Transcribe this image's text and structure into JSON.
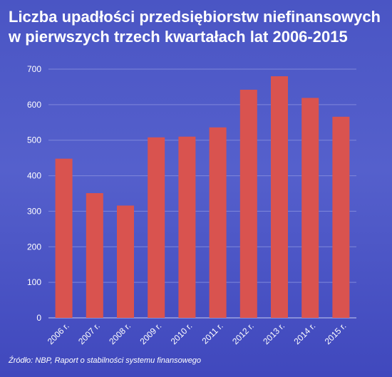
{
  "title_lines": [
    "Liczba upadłości przedsiębiorstw niefinansowych",
    "w pierwszych trzech kwartałach lat 2006-2015"
  ],
  "source": "Źródło: NBP, Raport o stabilności systemu finansowego",
  "colors": {
    "bar": "#d9534f",
    "background": "#4a55c4",
    "grid": "#7f87da",
    "text": "#ffffff"
  },
  "chart_data": {
    "type": "bar",
    "title": "Liczba upadłości przedsiębiorstw niefinansowych w pierwszych trzech kwartałach lat 2006-2015",
    "categories": [
      "2006 r.",
      "2007 r.",
      "2008 r.",
      "2009 r.",
      "2010 r.",
      "2011 r.",
      "2012 r.",
      "2013 r.",
      "2014 r.",
      "2015 r."
    ],
    "values": [
      448,
      351,
      316,
      508,
      510,
      536,
      642,
      680,
      619,
      566
    ],
    "ylim": [
      0,
      700
    ],
    "yticks": [
      0,
      100,
      200,
      300,
      400,
      500,
      600,
      700
    ],
    "grid": true,
    "xlabel": "",
    "ylabel": ""
  }
}
